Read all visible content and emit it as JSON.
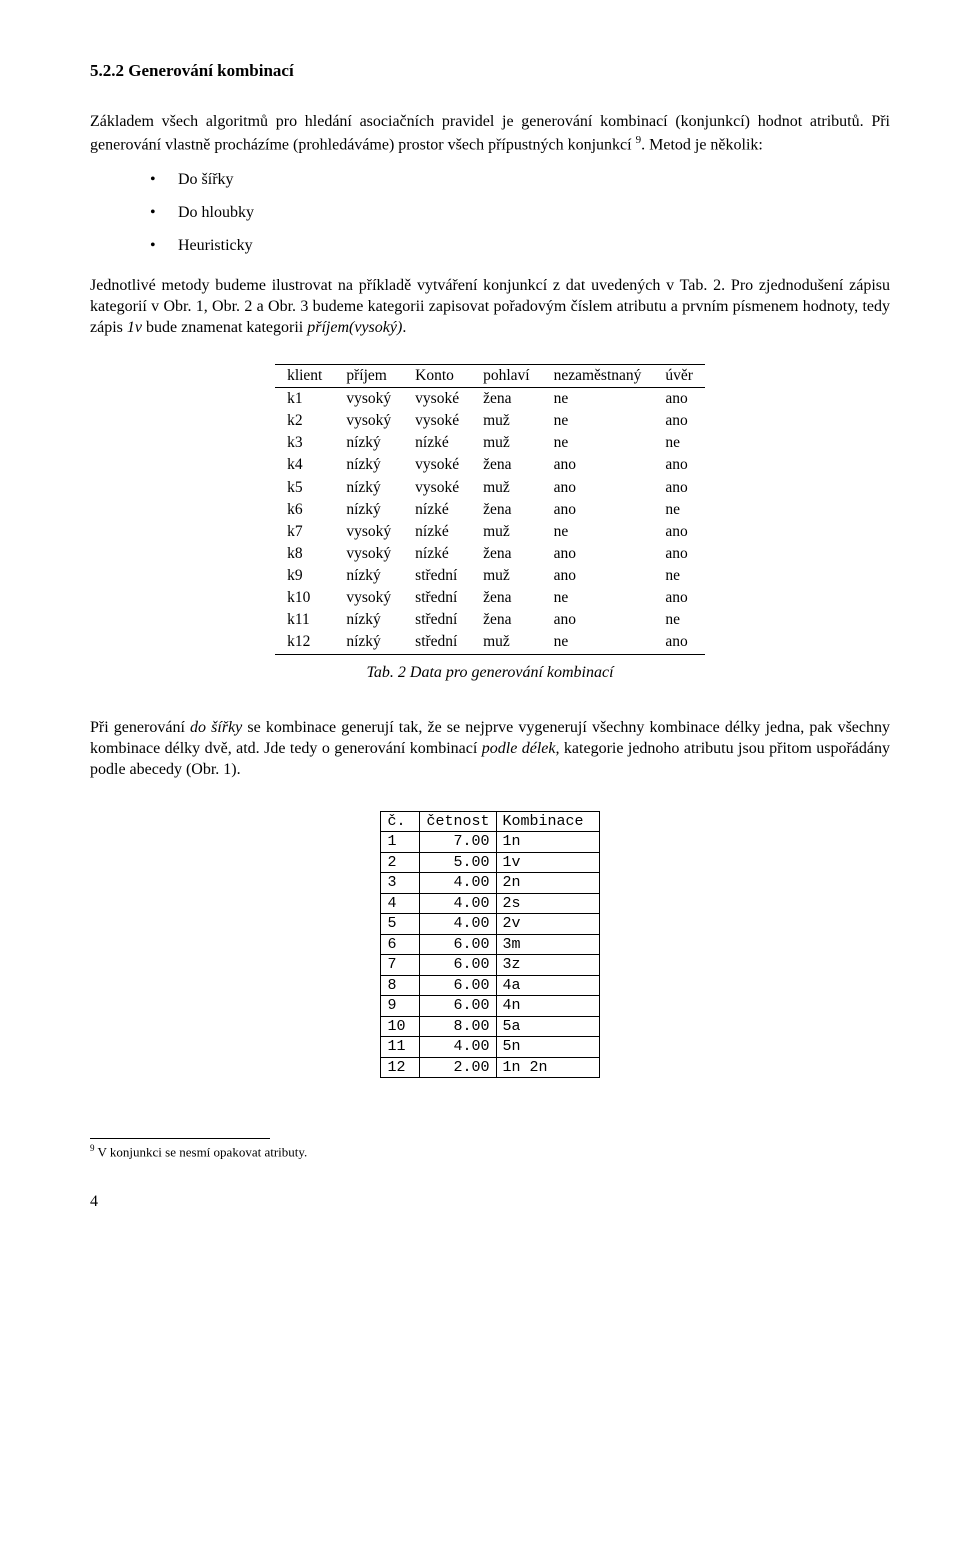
{
  "heading": "5.2.2   Generování kombinací",
  "para1_a": "Základem všech algoritmů pro hledání asociačních pravidel je generování kombinací (konjunkcí) hodnot atributů. Při generování vlastně procházíme (prohledáváme) prostor všech přípustných konjunkcí ",
  "para1_sup": "9",
  "para1_b": ". Metod je několik:",
  "bullets": [
    "Do šířky",
    "Do hloubky",
    "Heuristicky"
  ],
  "para2_a": "Jednotlivé metody budeme ilustrovat na příkladě vytváření konjunkcí z dat uvedených v Tab.  2. Pro zjednodušení zápisu kategorií v Obr.  1, Obr.  2 a Obr.  3 budeme  kategorii zapisovat pořadovým číslem atributu a  prvním písmenem hodnoty, tedy zápis ",
  "para2_it1": "1v",
  "para2_b": "  bude znamenat kategorii ",
  "para2_it2": "příjem(vysoký)",
  "para2_c": ".",
  "table1": {
    "headers": [
      "klient",
      "příjem",
      "Konto",
      "pohlaví",
      "nezaměstnaný",
      "úvěr"
    ],
    "rows": [
      [
        "k1",
        "vysoký",
        "vysoké",
        "žena",
        "ne",
        "ano"
      ],
      [
        "k2",
        "vysoký",
        "vysoké",
        "muž",
        "ne",
        "ano"
      ],
      [
        "k3",
        "nízký",
        "nízké",
        "muž",
        "ne",
        "ne"
      ],
      [
        "k4",
        "nízký",
        "vysoké",
        "žena",
        "ano",
        "ano"
      ],
      [
        "k5",
        "nízký",
        "vysoké",
        "muž",
        "ano",
        "ano"
      ],
      [
        "k6",
        "nízký",
        "nízké",
        "žena",
        "ano",
        "ne"
      ],
      [
        "k7",
        "vysoký",
        "nízké",
        "muž",
        "ne",
        "ano"
      ],
      [
        "k8",
        "vysoký",
        "nízké",
        "žena",
        "ano",
        "ano"
      ],
      [
        "k9",
        "nízký",
        "střední",
        "muž",
        "ano",
        "ne"
      ],
      [
        "k10",
        "vysoký",
        "střední",
        "žena",
        "ne",
        "ano"
      ],
      [
        "k11",
        "nízký",
        "střední",
        "žena",
        "ano",
        "ne"
      ],
      [
        "k12",
        "nízký",
        "střední",
        "muž",
        "ne",
        "ano"
      ]
    ]
  },
  "caption1": "Tab.  2  Data pro generování kombinací",
  "para3_a": "Při generování ",
  "para3_it1": "do šířky",
  "para3_b": " se kombinace generují tak, že se nejprve vygenerují všechny kombinace délky jedna, pak všechny kombinace délky dvě, atd. Jde tedy o generování kombinací ",
  "para3_it2": "podle délek,",
  "para3_c": " kategorie jednoho atributu jsou přitom uspořádány podle abecedy (Obr.  1).",
  "table2": {
    "headers": [
      "č.",
      "četnost",
      "Kombinace"
    ],
    "rows": [
      [
        "1",
        "7.00",
        "1n"
      ],
      [
        "2",
        "5.00",
        "1v"
      ],
      [
        "3",
        "4.00",
        "2n"
      ],
      [
        "4",
        "4.00",
        "2s"
      ],
      [
        "5",
        "4.00",
        "2v"
      ],
      [
        "6",
        "6.00",
        "3m"
      ],
      [
        "7",
        "6.00",
        "3z"
      ],
      [
        "8",
        "6.00",
        "4a"
      ],
      [
        "9",
        "6.00",
        "4n"
      ],
      [
        "10",
        "8.00",
        "5a"
      ],
      [
        "11",
        "4.00",
        "5n"
      ],
      [
        "12",
        "2.00",
        "1n 2n"
      ]
    ]
  },
  "footnote_sup": "9",
  "footnote_text": " V konjunkci se nesmí opakovat atributy.",
  "page_num": "4"
}
